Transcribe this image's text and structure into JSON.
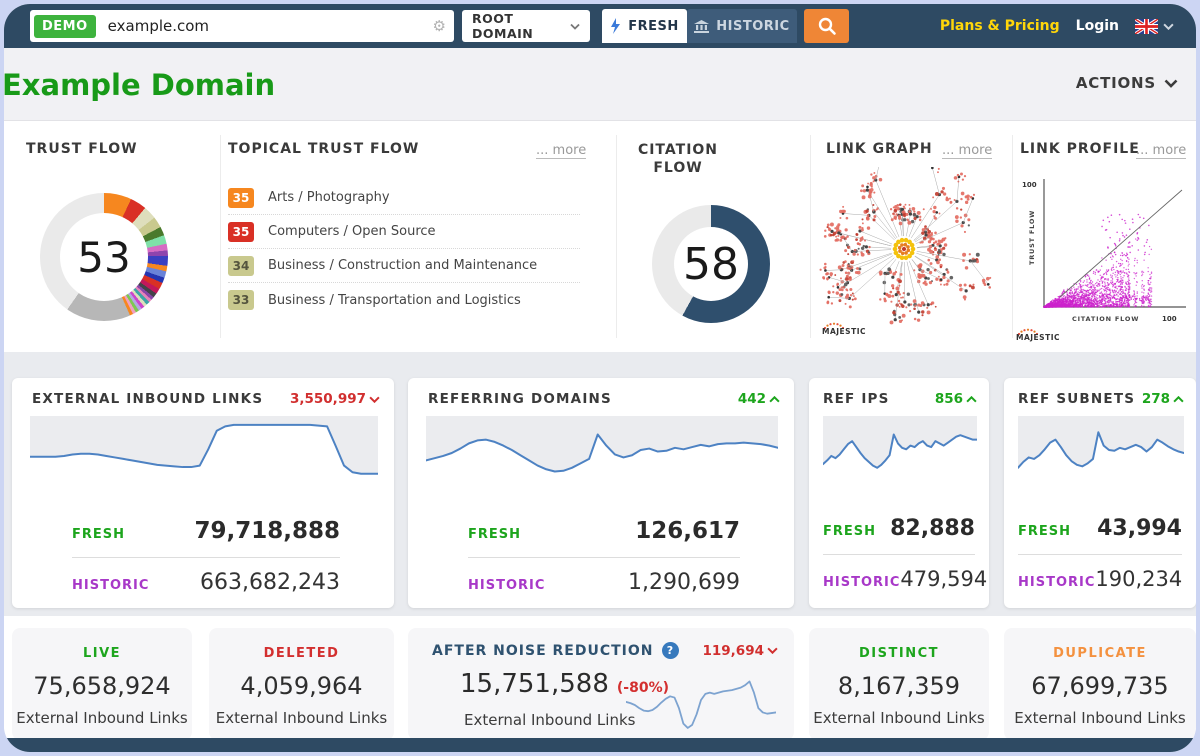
{
  "topbar": {
    "demo_badge": "DEMO",
    "search_value": "example.com",
    "root_domain_label": "ROOT DOMAIN",
    "fresh_tab": "FRESH",
    "historic_tab": "HISTORIC",
    "plans_pricing": "Plans & Pricing",
    "login": "Login"
  },
  "header": {
    "title": "Example Domain",
    "actions_label": "ACTIONS"
  },
  "flow_panel": {
    "trust_flow": {
      "title": "TRUST FLOW",
      "score": "53"
    },
    "topical": {
      "title": "TOPICAL TRUST FLOW",
      "more_label": "... more",
      "items": [
        {
          "score": "35",
          "label": "Arts / Photography",
          "color": "#f6871f",
          "text_color": "#ffffff"
        },
        {
          "score": "35",
          "label": "Computers / Open Source",
          "color": "#d93025",
          "text_color": "#ffffff"
        },
        {
          "score": "34",
          "label": "Business / Construction and Maintenance",
          "color": "#c9c98e",
          "text_color": "#55553e"
        },
        {
          "score": "33",
          "label": "Business / Transportation and Logistics",
          "color": "#c9c98e",
          "text_color": "#55553e"
        }
      ]
    },
    "citation_flow": {
      "title": "CITATION FLOW",
      "score": "58"
    },
    "link_graph": {
      "title": "LINK GRAPH",
      "more_label": "... more",
      "brand": "MAJESTIC"
    },
    "link_profile": {
      "title": "LINK PROFILE",
      "more_label": "... more",
      "brand": "MAJESTIC",
      "y_axis": "TRUST FLOW",
      "x_axis": "CITATION FLOW",
      "y_max": "100",
      "x_max": "100"
    }
  },
  "stat_cards": [
    {
      "title": "EXTERNAL INBOUND LINKS",
      "delta": "3,550,997",
      "delta_dir": "down",
      "fresh_label": "FRESH",
      "fresh": "79,718,888",
      "historic_label": "HISTORIC",
      "historic": "663,682,243"
    },
    {
      "title": "REFERRING DOMAINS",
      "delta": "442",
      "delta_dir": "up",
      "fresh_label": "FRESH",
      "fresh": "126,617",
      "historic_label": "HISTORIC",
      "historic": "1,290,699"
    },
    {
      "title": "REF IPS",
      "delta": "856",
      "delta_dir": "up",
      "fresh_label": "FRESH",
      "fresh": "82,888",
      "historic_label": "HISTORIC",
      "historic": "479,594"
    },
    {
      "title": "REF SUBNETS",
      "delta": "278",
      "delta_dir": "up",
      "fresh_label": "FRESH",
      "fresh": "43,994",
      "historic_label": "HISTORIC",
      "historic": "190,234"
    }
  ],
  "bottom_cards": {
    "live": {
      "label": "LIVE",
      "value": "75,658,924",
      "caption": "External Inbound Links"
    },
    "deleted": {
      "label": "DELETED",
      "value": "4,059,964",
      "caption": "External Inbound Links"
    },
    "anr": {
      "title": "AFTER NOISE REDUCTION",
      "delta": "119,694",
      "delta_dir": "down",
      "value": "15,751,588",
      "pct": "(-80%)",
      "caption": "External Inbound Links"
    },
    "distinct": {
      "label": "DISTINCT",
      "value": "8,167,359",
      "caption": "External Inbound Links"
    },
    "duplicate": {
      "label": "DUPLICATE",
      "value": "67,699,735",
      "caption": "External Inbound Links"
    }
  },
  "colors": {
    "topbar_bg": "#2e4a63",
    "accent_orange": "#ef8636",
    "fresh_green": "#1da51d",
    "historic_purple": "#a838c8",
    "delta_red": "#d12f2f",
    "title_green": "#189a18",
    "sparkline_blue": "#4d82c3",
    "citation_blue": "#2f4f6d",
    "plans_yellow": "#ffd60a"
  },
  "chart_data": {
    "trust_flow_donut": {
      "type": "donut",
      "score": 53,
      "segments": [
        [
          25,
          "#f6871f"
        ],
        [
          15,
          "#d93025"
        ],
        [
          12,
          "#dedebc"
        ],
        [
          10,
          "#c9c98e"
        ],
        [
          8,
          "#4a7a2c"
        ],
        [
          8,
          "#7fe0a8"
        ],
        [
          6,
          "#d66bc4"
        ],
        [
          5,
          "#8e44ad"
        ],
        [
          9,
          "#3a3fc1"
        ],
        [
          5,
          "#f6871f"
        ],
        [
          6,
          "#6a83d8"
        ],
        [
          5,
          "#2535b0"
        ],
        [
          6,
          "#d93025"
        ],
        [
          5,
          "#c2185b"
        ],
        [
          4,
          "#44434a"
        ],
        [
          3,
          "#8845a8"
        ],
        [
          3,
          "#e684b8"
        ],
        [
          3,
          "#3aa6a6"
        ],
        [
          3,
          "#dedebc"
        ],
        [
          3,
          "#cc44cc"
        ],
        [
          3,
          "#b3a7e3"
        ],
        [
          3,
          "#7ec850"
        ],
        [
          3,
          "#f0a0c0"
        ],
        [
          3,
          "#f6871f"
        ],
        [
          59,
          "#b7b7b7"
        ],
        [
          145,
          "#eaeaea"
        ]
      ]
    },
    "citation_flow_donut": {
      "type": "donut",
      "score": 58,
      "segments": [
        [
          209,
          "#2f4f6d"
        ],
        [
          151,
          "#eaeaea"
        ]
      ]
    },
    "sparklines": {
      "external_inbound_links": {
        "type": "line",
        "values": [
          45,
          45,
          45,
          45,
          46,
          48,
          49,
          49,
          48,
          46,
          44,
          42,
          40,
          38,
          36,
          34,
          33,
          32,
          31,
          31,
          33,
          55,
          80,
          86,
          88,
          88,
          88,
          88,
          88,
          88,
          88,
          88,
          88,
          88,
          87,
          86,
          60,
          33,
          24,
          22,
          22,
          22
        ]
      },
      "referring_domains": {
        "type": "line",
        "values": [
          40,
          43,
          46,
          50,
          56,
          63,
          67,
          68,
          65,
          60,
          54,
          47,
          40,
          33,
          28,
          25,
          26,
          30,
          36,
          42,
          75,
          60,
          48,
          44,
          47,
          54,
          56,
          52,
          53,
          57,
          55,
          58,
          61,
          59,
          62,
          63,
          63,
          64,
          63,
          62,
          60,
          57
        ]
      },
      "ref_ips": {
        "type": "line",
        "values": [
          35,
          40,
          46,
          43,
          48,
          55,
          62,
          66,
          58,
          50,
          43,
          38,
          33,
          30,
          34,
          40,
          47,
          75,
          63,
          57,
          55,
          60,
          58,
          63,
          66,
          60,
          58,
          66,
          63,
          60,
          64,
          68,
          72,
          74,
          72,
          70,
          68,
          68
        ]
      },
      "ref_subnets": {
        "type": "line",
        "values": [
          30,
          38,
          44,
          42,
          47,
          55,
          64,
          68,
          58,
          47,
          39,
          34,
          32,
          36,
          42,
          78,
          60,
          54,
          53,
          57,
          55,
          58,
          61,
          58,
          52,
          58,
          68,
          64,
          59,
          55,
          52,
          50
        ]
      },
      "after_noise_reduction": {
        "type": "line",
        "values": [
          55,
          53,
          50,
          45,
          41,
          40,
          42,
          47,
          54,
          60,
          64,
          62,
          45,
          20,
          13,
          18,
          35,
          58,
          68,
          70,
          68,
          70,
          72,
          73,
          74,
          76,
          78,
          82,
          88,
          70,
          45,
          38,
          36,
          37,
          38
        ]
      }
    },
    "link_profile_scatter": {
      "type": "scatter",
      "xlabel": "CITATION FLOW",
      "ylabel": "TRUST FLOW",
      "xlim": [
        0,
        100
      ],
      "ylim": [
        0,
        100
      ],
      "note": "dense magenta wedge below diagonal, sparse columns at higher citation flow"
    }
  }
}
